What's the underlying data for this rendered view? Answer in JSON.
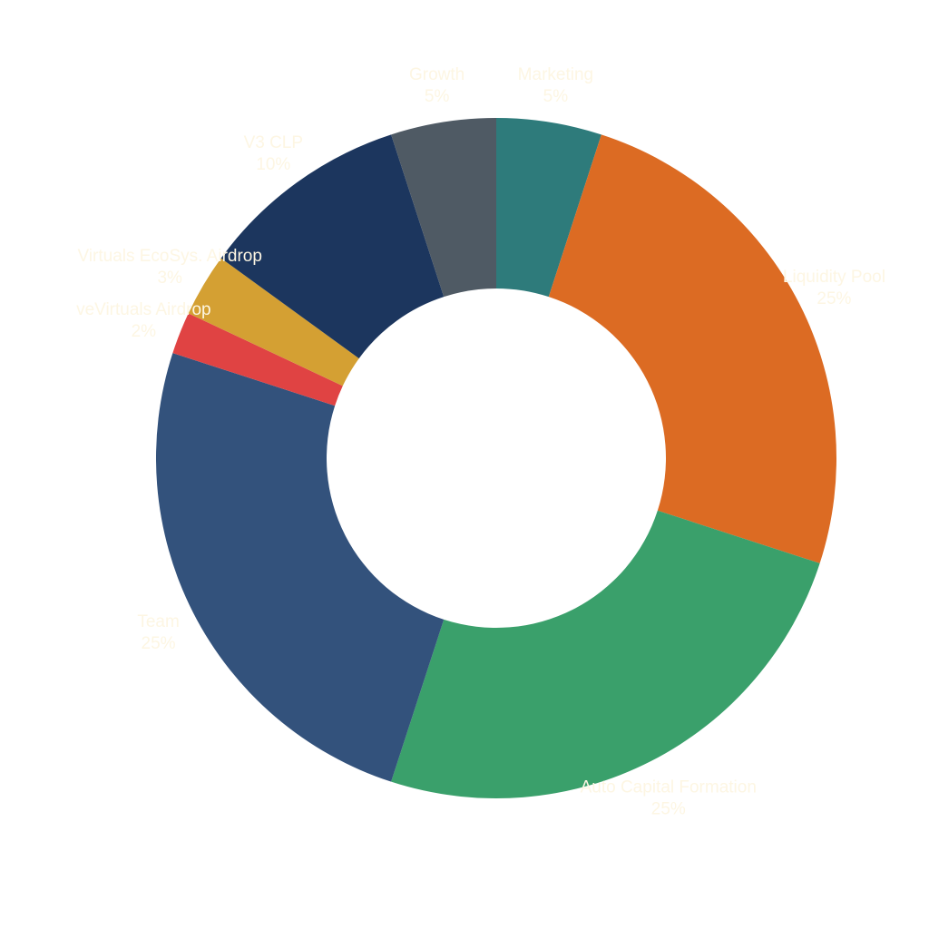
{
  "chart_data": {
    "type": "pie",
    "donut": true,
    "start": "top",
    "direction": "clockwise",
    "legend": "none",
    "grid": false,
    "slices": [
      {
        "label": "Marketing",
        "value": 5,
        "value_label": "5%",
        "color": "#2e7b7b"
      },
      {
        "label": "Liquidity Pool",
        "value": 25,
        "value_label": "25%",
        "color": "#dc6b23"
      },
      {
        "label": "Auto Capital Formation",
        "value": 25,
        "value_label": "25%",
        "color": "#3aa06b"
      },
      {
        "label": "Team",
        "value": 25,
        "value_label": "25%",
        "color": "#33527c"
      },
      {
        "label": "veVirtuals Airdrop",
        "value": 2,
        "value_label": "2%",
        "color": "#e04343"
      },
      {
        "label": "Virtuals EcoSys. Airdrop",
        "value": 3,
        "value_label": "3%",
        "color": "#d4a033"
      },
      {
        "label": "V3 CLP",
        "value": 10,
        "value_label": "10%",
        "color": "#1c365e"
      },
      {
        "label": "Growth",
        "value": 5,
        "value_label": "5%",
        "color": "#4f5a64"
      }
    ]
  }
}
